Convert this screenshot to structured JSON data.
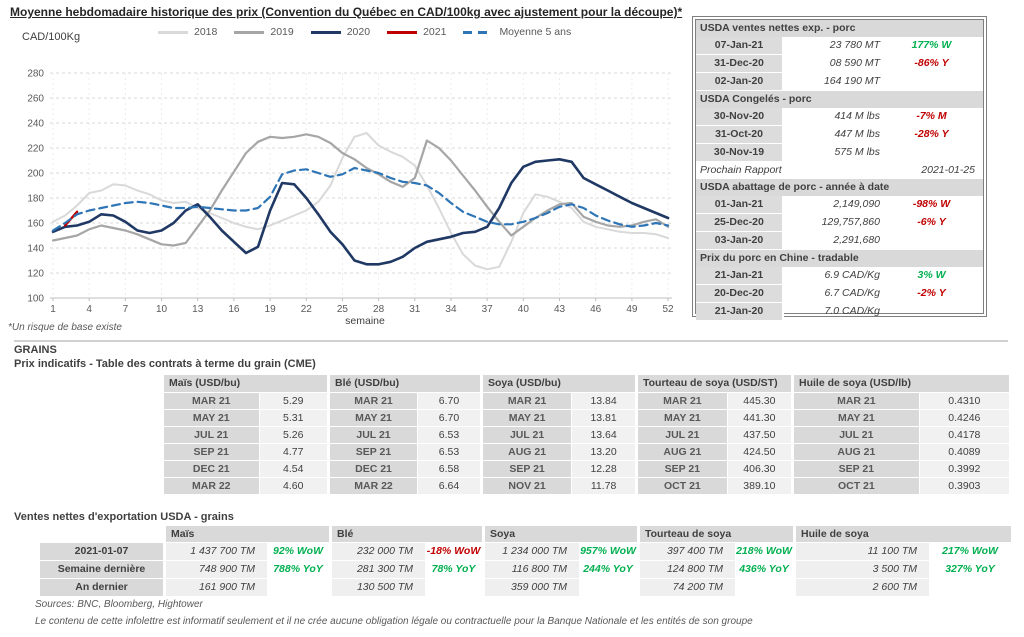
{
  "page": {
    "title": "Moyenne hebdomadaire historique des prix (Convention du Québec en CAD/100kg avec ajustement pour la découpe)*",
    "footnote": "*Un risque de base existe",
    "sources": "Sources: BNC, Bloomberg, Hightower",
    "disclaimer": "Le contenu de cette infolettre est informatif seulement et il ne crée aucune obligation légale ou contractuelle pour la Banque Nationale et les entités de son groupe"
  },
  "colors": {
    "green": "#00B050",
    "red": "#C00000",
    "grid": "#d9d9d9",
    "axis_text": "#595959"
  },
  "chart_data": {
    "type": "line",
    "title": "Moyenne hebdomadaire historique des prix (Convention du Québec en CAD/100kg avec ajustement pour la découpe)*",
    "ylabel": "CAD/100Kg",
    "xlabel": "semaine",
    "ylim": [
      100,
      280
    ],
    "ytick_step": 20,
    "xticks": [
      1,
      4,
      7,
      10,
      13,
      16,
      19,
      22,
      25,
      28,
      31,
      34,
      37,
      40,
      43,
      46,
      49,
      52
    ],
    "x": [
      1,
      2,
      3,
      4,
      5,
      6,
      7,
      8,
      9,
      10,
      11,
      12,
      13,
      14,
      15,
      16,
      17,
      18,
      19,
      20,
      21,
      22,
      23,
      24,
      25,
      26,
      27,
      28,
      29,
      30,
      31,
      32,
      33,
      34,
      35,
      36,
      37,
      38,
      39,
      40,
      41,
      42,
      43,
      44,
      45,
      46,
      47,
      48,
      49,
      50,
      51,
      52
    ],
    "grid": "horizontal-dashed",
    "legend_position": "top",
    "series": [
      {
        "name": "2018",
        "color": "#d9d9d9",
        "style": "solid",
        "values": [
          161,
          166,
          174,
          184,
          186,
          191,
          190,
          186,
          183,
          178,
          176,
          177,
          172,
          168,
          164,
          160,
          157,
          155,
          158,
          162,
          166,
          170,
          177,
          190,
          212,
          229,
          232,
          222,
          217,
          213,
          206,
          190,
          172,
          152,
          135,
          126,
          123,
          125,
          145,
          168,
          183,
          181,
          177,
          172,
          161,
          157,
          155,
          153,
          152,
          152,
          151,
          148
        ]
      },
      {
        "name": "2019",
        "color": "#a6a6a6",
        "style": "solid",
        "values": [
          146,
          148,
          150,
          155,
          158,
          156,
          154,
          151,
          147,
          143,
          142,
          144,
          157,
          170,
          186,
          201,
          216,
          225,
          229,
          228,
          229,
          231,
          229,
          224,
          216,
          211,
          204,
          199,
          193,
          189,
          196,
          226,
          220,
          210,
          198,
          186,
          173,
          161,
          150,
          157,
          164,
          170,
          175,
          176,
          165,
          161,
          158,
          157,
          158,
          161,
          163,
          157
        ]
      },
      {
        "name": "2020",
        "color": "#1f3864",
        "style": "solid",
        "values": [
          153,
          157,
          158,
          161,
          167,
          166,
          161,
          154,
          152,
          154,
          160,
          170,
          175,
          165,
          154,
          145,
          136,
          141,
          170,
          192,
          191,
          180,
          167,
          153,
          143,
          130,
          127,
          127,
          129,
          133,
          140,
          145,
          147,
          149,
          152,
          153,
          157,
          172,
          192,
          205,
          209,
          210,
          211,
          209,
          196,
          191,
          186,
          181,
          176,
          172,
          168,
          164
        ]
      },
      {
        "name": "2021",
        "color": "#c00000",
        "style": "solid",
        "values": [
          null,
          158,
          169,
          null,
          null,
          null,
          null,
          null,
          null,
          null,
          null,
          null,
          null,
          null,
          null,
          null,
          null,
          null,
          null,
          null,
          null,
          null,
          null,
          null,
          null,
          null,
          null,
          null,
          null,
          null,
          null,
          null,
          null,
          null,
          null,
          null,
          null,
          null,
          null,
          null,
          null,
          null,
          null,
          null,
          null,
          null,
          null,
          null,
          null,
          null,
          null,
          null
        ]
      },
      {
        "name": "Moyenne 5 ans",
        "color": "#2e75b6",
        "style": "dashed",
        "values": [
          154,
          160,
          167,
          170,
          172,
          174,
          176,
          177,
          176,
          174,
          172,
          172,
          173,
          172,
          171,
          170,
          170,
          172,
          181,
          199,
          202,
          203,
          200,
          197,
          199,
          204,
          202,
          200,
          196,
          193,
          192,
          190,
          184,
          176,
          169,
          165,
          161,
          159,
          159,
          161,
          164,
          168,
          173,
          175,
          172,
          166,
          162,
          159,
          157,
          158,
          160,
          158
        ]
      }
    ]
  },
  "pork_panel": {
    "sections": [
      {
        "header": "USDA ventes nettes exp. - porc",
        "rows": [
          {
            "date": "07-Jan-21",
            "value": "23 780  MT",
            "change": "177% W",
            "dir": "up"
          },
          {
            "date": "31-Dec-20",
            "value": "08 590  MT",
            "change": "-86% Y",
            "dir": "down"
          },
          {
            "date": "02-Jan-20",
            "value": "164 190  MT",
            "change": "",
            "dir": ""
          }
        ]
      },
      {
        "header": "USDA Congelés - porc",
        "rows": [
          {
            "date": "30-Nov-20",
            "value": "414 M lbs",
            "change": "-7% M",
            "dir": "down"
          },
          {
            "date": "31-Oct-20",
            "value": "447 M lbs",
            "change": "-28% Y",
            "dir": "down"
          },
          {
            "date": "30-Nov-19",
            "value": "575 M lbs",
            "change": "",
            "dir": ""
          }
        ]
      },
      {
        "note": {
          "label": "Prochain Rapport",
          "value": "2021-01-25"
        }
      },
      {
        "header": "USDA abattage de porc - année à date",
        "rows": [
          {
            "date": "01-Jan-21",
            "value": "2,149,090",
            "change": "-98% W",
            "dir": "down"
          },
          {
            "date": "25-Dec-20",
            "value": "129,757,860",
            "change": "-6% Y",
            "dir": "down"
          },
          {
            "date": "03-Jan-20",
            "value": "2,291,680",
            "change": "",
            "dir": ""
          }
        ]
      },
      {
        "header": "Prix du porc en Chine - tradable",
        "rows": [
          {
            "date": "21-Jan-21",
            "value": "6.9 CAD/Kg",
            "change": "3% W",
            "dir": "up"
          },
          {
            "date": "20-Dec-20",
            "value": "6.7 CAD/Kg",
            "change": "-2% Y",
            "dir": "down"
          },
          {
            "date": "21-Jan-20",
            "value": "7.0 CAD/Kg",
            "change": "",
            "dir": ""
          }
        ]
      }
    ]
  },
  "grains": {
    "section_title": "GRAINS",
    "futures_title": "Prix indicatifs - Table des contrats à terme du grain (CME)",
    "futures": [
      {
        "commodity": "Maïs (USD/bu)",
        "rows": [
          [
            "MAR 21",
            "5.29"
          ],
          [
            "MAY 21",
            "5.31"
          ],
          [
            "JUL 21",
            "5.26"
          ],
          [
            "SEP 21",
            "4.77"
          ],
          [
            "DEC 21",
            "4.54"
          ],
          [
            "MAR 22",
            "4.60"
          ]
        ]
      },
      {
        "commodity": "Blé (USD/bu)",
        "rows": [
          [
            "MAR 21",
            "6.70"
          ],
          [
            "MAY 21",
            "6.70"
          ],
          [
            "JUL 21",
            "6.53"
          ],
          [
            "SEP 21",
            "6.53"
          ],
          [
            "DEC 21",
            "6.58"
          ],
          [
            "MAR 22",
            "6.64"
          ]
        ]
      },
      {
        "commodity": "Soya (USD/bu)",
        "rows": [
          [
            "MAR 21",
            "13.84"
          ],
          [
            "MAY 21",
            "13.81"
          ],
          [
            "JUL 21",
            "13.64"
          ],
          [
            "AUG 21",
            "13.20"
          ],
          [
            "SEP 21",
            "12.28"
          ],
          [
            "NOV 21",
            "11.78"
          ]
        ]
      },
      {
        "commodity": "Tourteau de soya (USD/ST)",
        "rows": [
          [
            "MAR 21",
            "445.30"
          ],
          [
            "MAY 21",
            "441.30"
          ],
          [
            "JUL 21",
            "437.50"
          ],
          [
            "AUG 21",
            "424.50"
          ],
          [
            "SEP 21",
            "406.30"
          ],
          [
            "OCT 21",
            "389.10"
          ]
        ]
      },
      {
        "commodity": "Huile de soya (USD/lb)",
        "rows": [
          [
            "MAR 21",
            "0.4310"
          ],
          [
            "MAY 21",
            "0.4246"
          ],
          [
            "JUL 21",
            "0.4178"
          ],
          [
            "AUG 21",
            "0.4089"
          ],
          [
            "SEP 21",
            "0.3992"
          ],
          [
            "OCT 21",
            "0.3903"
          ]
        ]
      }
    ],
    "exports_title": "Ventes nettes d'exportation USDA - grains",
    "exports_row_labels": [
      "2021-01-07",
      "Semaine dernière",
      "An dernier"
    ],
    "exports": [
      {
        "commodity": "Maïs",
        "cells": [
          [
            "1 437 700 TM",
            "92% WoW",
            "up"
          ],
          [
            "748 900 TM",
            "788% YoY",
            "up"
          ],
          [
            "161 900 TM",
            "",
            ""
          ]
        ]
      },
      {
        "commodity": "Blé",
        "cells": [
          [
            "232 000 TM",
            "-18% WoW",
            "down"
          ],
          [
            "281 300 TM",
            "78% YoY",
            "up"
          ],
          [
            "130 500 TM",
            "",
            ""
          ]
        ]
      },
      {
        "commodity": "Soya",
        "cells": [
          [
            "1 234 000 TM",
            "957% WoW",
            "up"
          ],
          [
            "116 800 TM",
            "244% YoY",
            "up"
          ],
          [
            "359 000 TM",
            "",
            ""
          ]
        ]
      },
      {
        "commodity": "Tourteau de soya",
        "cells": [
          [
            "397 400 TM",
            "218% WoW",
            "up"
          ],
          [
            "124 800 TM",
            "436% YoY",
            "up"
          ],
          [
            "74 200 TM",
            "",
            ""
          ]
        ]
      },
      {
        "commodity": "Huile de soya",
        "cells": [
          [
            "11 100 TM",
            "217% WoW",
            "up"
          ],
          [
            "3 500 TM",
            "327% YoY",
            "up"
          ],
          [
            "2 600 TM",
            "",
            ""
          ]
        ]
      }
    ]
  }
}
